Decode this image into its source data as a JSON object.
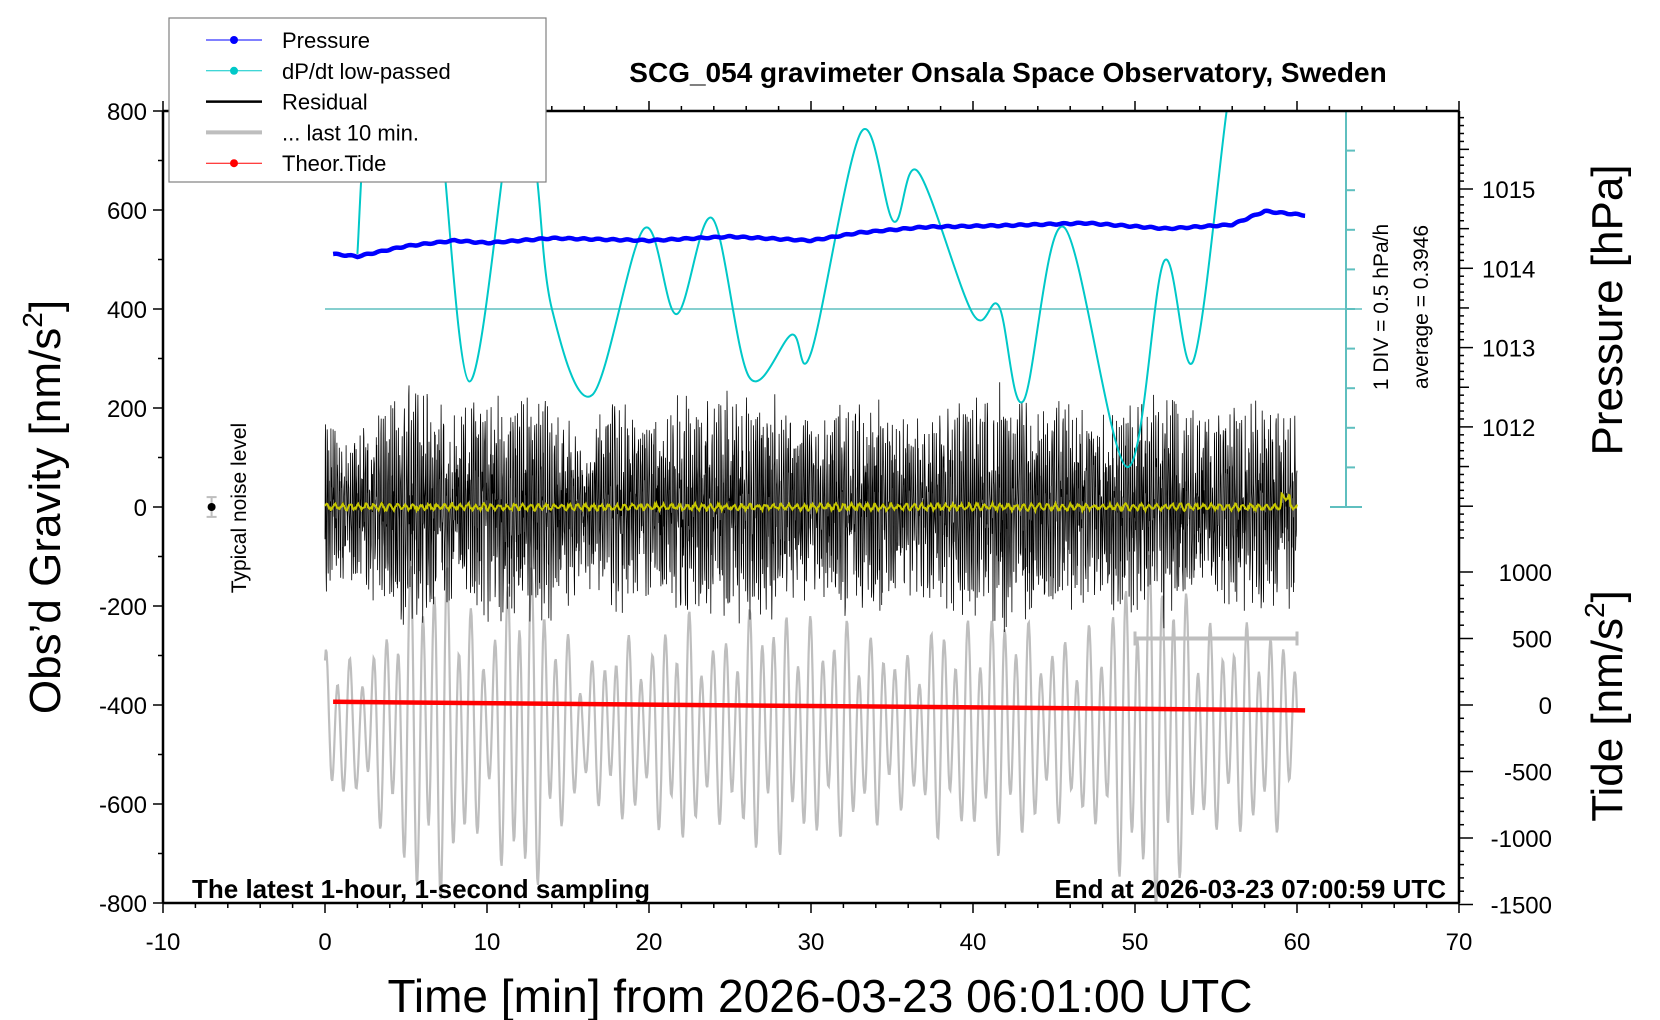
{
  "chart_data": {
    "type": "line",
    "title": "SCG_054 gravimeter Onsala Space Observatory, Sweden",
    "xlabel": "Time [min] from 2026-03-23 06:01:00 UTC",
    "ylabel": "Obs'd Gravity [nm/s²]",
    "ylabel_base": "Obs’d Gravity [nm/s",
    "ylabel_sup": "2",
    "ylabel_end": "]",
    "y2label": "Pressure [hPa]",
    "y3label_base": "Tide [nm/s",
    "y3label_sup": "2",
    "y3label_end": "]",
    "xlim": [
      -10,
      70
    ],
    "ylim": [
      -800,
      800
    ],
    "x_ticks": [
      "-10",
      "0",
      "10",
      "20",
      "30",
      "40",
      "50",
      "60",
      "70"
    ],
    "y_ticks": [
      "800",
      "600",
      "400",
      "200",
      "0",
      "-200",
      "-400",
      "-600",
      "-800"
    ],
    "pressure_ticks": [
      "1015",
      "1014",
      "1013",
      "1012"
    ],
    "tide_ticks": [
      "1000",
      "500",
      "0",
      "-500",
      "-1000",
      "-1500"
    ],
    "grid": false,
    "legend_placement": "top-left",
    "legend": [
      {
        "label": "Pressure",
        "color": "#0000ff",
        "marker": "dot"
      },
      {
        "label": "dP/dt low-passed",
        "color": "#00c8c8",
        "marker": "dot"
      },
      {
        "label": "Residual",
        "color": "#000000",
        "marker": "none"
      },
      {
        "label": "... last 10 min.",
        "color": "#bebebe",
        "marker": "none"
      },
      {
        "label": "Theor.Tide",
        "color": "#ff0000",
        "marker": "dot"
      }
    ],
    "annotations": {
      "left_bottom": "The latest 1-hour, 1-second sampling",
      "right_bottom": "End at 2026-03-23 07:00:59 UTC",
      "div": "1 DIV = 0.5 hPa/h",
      "average": "average = 0.3946",
      "noise": "Typical noise level"
    },
    "noise_level": {
      "x": -7,
      "y": 0,
      "error": 20
    },
    "dpdt_average": 0.3946,
    "dpdt_div_hpa_per_h": 0.5,
    "pressure_hpa": {
      "x": [
        0.5,
        2,
        5,
        8,
        10,
        14,
        20,
        25,
        30,
        33,
        37,
        42,
        47,
        52,
        56,
        58,
        60.5
      ],
      "y": [
        1014.18,
        1014.15,
        1014.28,
        1014.35,
        1014.32,
        1014.38,
        1014.35,
        1014.4,
        1014.35,
        1014.45,
        1014.52,
        1014.54,
        1014.57,
        1014.5,
        1014.55,
        1014.72,
        1014.67
      ]
    },
    "dpdt_hpa_per_h": {
      "x": [
        2,
        2.6,
        4,
        6,
        7,
        8.9,
        11.3,
        12,
        13,
        14,
        16.5,
        19.7,
        21.7,
        23.9,
        26.2,
        28.8,
        30,
        33.1,
        35.1,
        36.6,
        40,
        41.6,
        43.1,
        45.6,
        49.5,
        51.8,
        53.6,
        55.7,
        56.5
      ],
      "y": [
        1.09,
        2.9,
        3.6,
        3.2,
        2.9,
        -0.52,
        2.6,
        3.2,
        2.2,
        0.4,
        -0.69,
        1.41,
        0.33,
        1.54,
        -0.47,
        0.07,
        -0.16,
        2.63,
        1.5,
        2.13,
        0.33,
        0.43,
        -0.77,
        1.43,
        -1.6,
        1.0,
        -0.26,
        2.96,
        3.8
      ]
    },
    "residual_envelope_nm_s2": {
      "x": [
        0,
        2,
        4,
        6,
        8,
        10,
        12,
        14,
        16,
        18,
        20,
        22,
        24,
        26,
        28,
        30,
        32,
        34,
        36,
        38,
        40,
        42,
        44,
        46,
        48,
        50,
        52,
        54,
        56,
        58,
        60
      ],
      "y": [
        180,
        160,
        230,
        270,
        190,
        260,
        230,
        240,
        170,
        230,
        190,
        240,
        220,
        260,
        240,
        180,
        230,
        230,
        190,
        200,
        250,
        270,
        230,
        210,
        200,
        230,
        250,
        190,
        220,
        230,
        200
      ]
    },
    "last10_envelope_nm_s2": {
      "x": [
        0,
        2,
        4,
        6,
        8,
        10,
        12,
        14,
        16,
        18,
        20,
        22,
        24,
        26,
        28,
        30,
        32,
        34,
        36,
        38,
        40,
        42,
        44,
        46,
        48,
        50,
        52,
        54,
        56,
        58,
        60
      ],
      "y": [
        200,
        130,
        230,
        390,
        330,
        180,
        400,
        260,
        130,
        200,
        180,
        260,
        180,
        250,
        260,
        230,
        230,
        200,
        160,
        230,
        220,
        270,
        200,
        190,
        230,
        360,
        380,
        220,
        220,
        220,
        190
      ]
    },
    "last10_center_nm_s2": -450,
    "last10_bar": {
      "x_start": 50,
      "x_end": 60,
      "tide_level": 500
    },
    "theor_tide_nm_s2": {
      "x": [
        0.5,
        60.5
      ],
      "y": [
        24,
        -40
      ]
    },
    "colors": {
      "pressure": "#0000ff",
      "dpdt": "#00c8c8",
      "dpdt_axis": "#5fbfbf",
      "residual": "#000000",
      "lowpass_residual": "#c8c800",
      "last10": "#bebebe",
      "tide": "#ff0000"
    }
  }
}
